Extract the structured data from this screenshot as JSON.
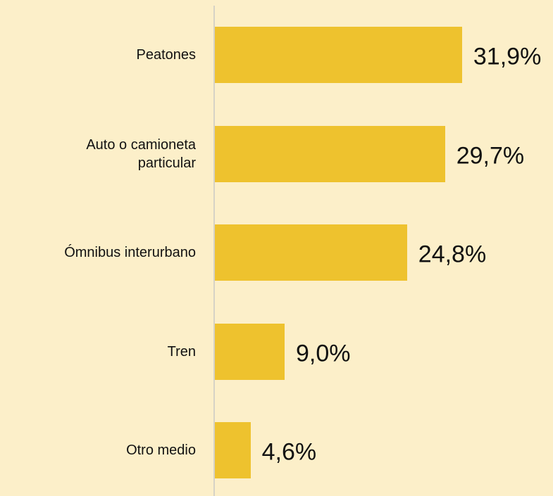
{
  "chart_data": {
    "type": "bar",
    "orientation": "horizontal",
    "categories": [
      "Peatones",
      "Auto o camioneta particular",
      "Ómnibus interurbano",
      "Tren",
      "Otro medio"
    ],
    "values": [
      31.9,
      29.7,
      24.8,
      9.0,
      4.6
    ],
    "value_labels": [
      "31,9%",
      "29,7%",
      "24,8%",
      "9,0%",
      "4,6%"
    ],
    "color": "#eec22e"
  }
}
